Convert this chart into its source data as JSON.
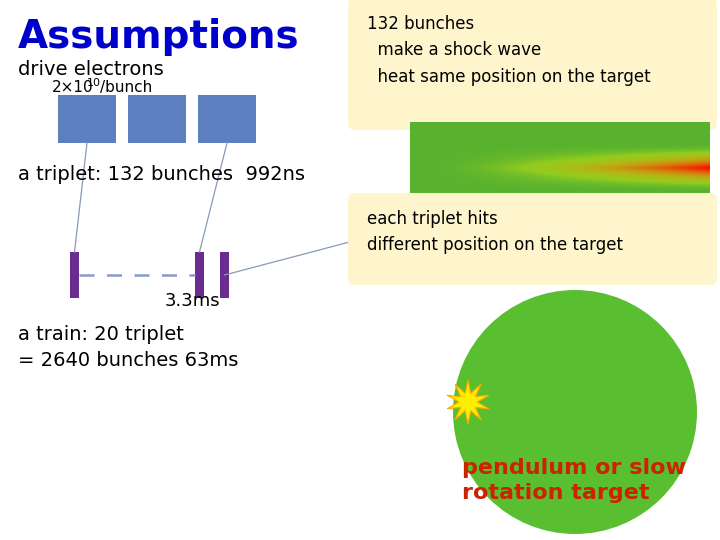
{
  "title": "Assumptions",
  "title_color": "#0000cc",
  "bg_color": "#ffffff",
  "drive_electrons_text": "drive electrons",
  "triplet_text": "a triplet: 132 bunches  992ns",
  "train_text": "a train: 20 triplet\n= 2640 bunches 63ms",
  "box1_text": "132 bunches\n  make a shock wave\n  heat same position on the target",
  "box2_text": "each triplet hits\ndifferent position on the target",
  "pendulum_text": "pendulum or slow\nrotation target",
  "time_label": "3.3ms",
  "blue_rect_color": "#5b7fbf",
  "purple_rect_color": "#6a2d8f",
  "box_bg_color": "#fef5cc",
  "green_circle_color": "#5abf30",
  "pendulum_text_color": "#cc2200",
  "line_color": "#8899bb"
}
